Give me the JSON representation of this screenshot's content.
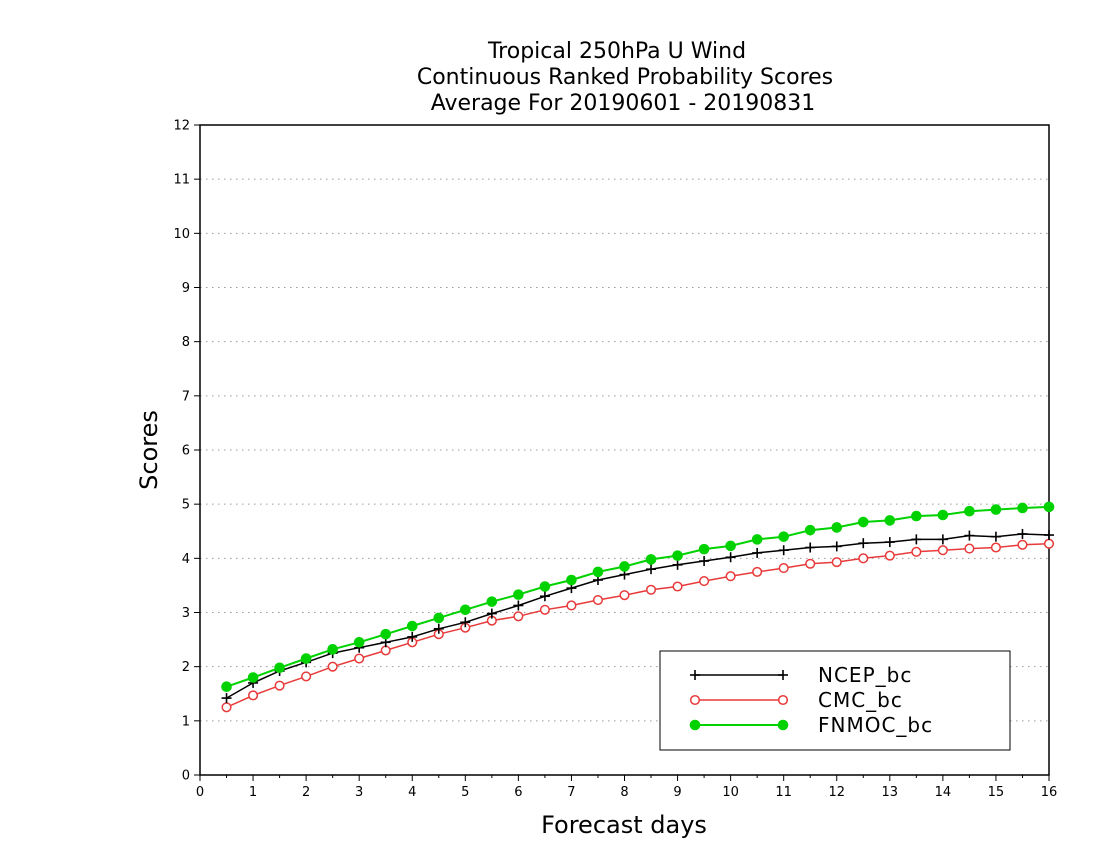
{
  "chart_data": {
    "type": "line",
    "title": [
      "Tropical 250hPa U Wind",
      "Continuous Ranked Probability Scores",
      "Average For 20190601 - 20190831"
    ],
    "xlabel": "Forecast days",
    "ylabel": "Scores",
    "xlim": [
      0,
      16
    ],
    "ylim": [
      0,
      12
    ],
    "xticks": [
      "0",
      "1",
      "2",
      "3",
      "4",
      "5",
      "6",
      "7",
      "8",
      "9",
      "10",
      "11",
      "12",
      "13",
      "14",
      "15",
      "16"
    ],
    "yticks": [
      "0",
      "1",
      "2",
      "3",
      "4",
      "5",
      "6",
      "7",
      "8",
      "9",
      "10",
      "11",
      "12"
    ],
    "grid": "horizontal-dotted",
    "legend_position": "bottom-right",
    "x": [
      0.5,
      1,
      1.5,
      2,
      2.5,
      3,
      3.5,
      4,
      4.5,
      5,
      5.5,
      6,
      6.5,
      7,
      7.5,
      8,
      8.5,
      9,
      9.5,
      10,
      10.5,
      11,
      11.5,
      12,
      12.5,
      13,
      13.5,
      14,
      14.5,
      15,
      15.5,
      16
    ],
    "series": [
      {
        "name": "NCEP_bc",
        "color": "#000000",
        "marker": "plus",
        "values": [
          1.42,
          1.7,
          1.92,
          2.08,
          2.25,
          2.35,
          2.45,
          2.55,
          2.7,
          2.82,
          2.98,
          3.13,
          3.3,
          3.45,
          3.6,
          3.7,
          3.8,
          3.88,
          3.95,
          4.02,
          4.1,
          4.15,
          4.2,
          4.22,
          4.28,
          4.3,
          4.35,
          4.35,
          4.42,
          4.4,
          4.45,
          4.43
        ]
      },
      {
        "name": "CMC_bc",
        "color": "#e83a3a",
        "marker": "open-circle",
        "values": [
          1.25,
          1.47,
          1.65,
          1.82,
          2.0,
          2.15,
          2.3,
          2.45,
          2.6,
          2.72,
          2.85,
          2.93,
          3.05,
          3.13,
          3.23,
          3.32,
          3.42,
          3.48,
          3.58,
          3.67,
          3.75,
          3.82,
          3.9,
          3.93,
          4.0,
          4.05,
          4.12,
          4.15,
          4.18,
          4.2,
          4.25,
          4.27
        ]
      },
      {
        "name": "FNMOC_bc",
        "color": "#00d200",
        "marker": "filled-circle",
        "values": [
          1.63,
          1.8,
          1.98,
          2.15,
          2.32,
          2.45,
          2.6,
          2.75,
          2.9,
          3.05,
          3.2,
          3.33,
          3.48,
          3.6,
          3.75,
          3.85,
          3.98,
          4.05,
          4.17,
          4.23,
          4.35,
          4.4,
          4.52,
          4.57,
          4.67,
          4.7,
          4.78,
          4.8,
          4.87,
          4.9,
          4.93,
          4.95
        ]
      }
    ]
  }
}
